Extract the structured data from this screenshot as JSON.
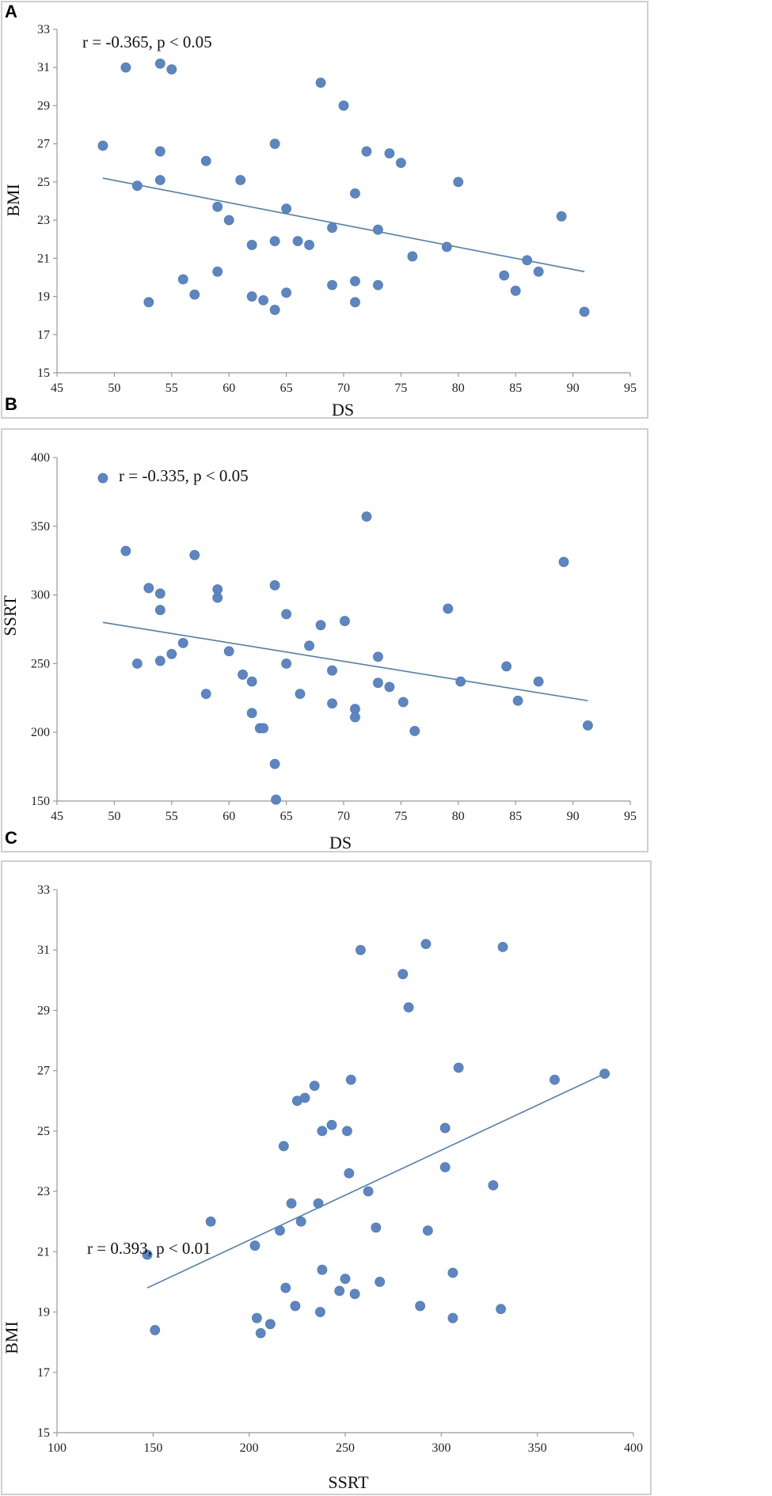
{
  "chart_data": [
    {
      "type": "scatter",
      "panel": "A",
      "title": "",
      "annotation": "r = -0.365,  p < 0.05",
      "xlabel": "DS",
      "ylabel": "BMI",
      "xlim": [
        45,
        95
      ],
      "ylim": [
        15,
        33
      ],
      "xticks": [
        45,
        50,
        55,
        60,
        65,
        70,
        75,
        80,
        85,
        90,
        95
      ],
      "yticks": [
        15,
        17,
        19,
        21,
        23,
        25,
        27,
        29,
        31,
        33
      ],
      "grid": false,
      "trendline": {
        "x": [
          49,
          91
        ],
        "y": [
          25.2,
          20.3
        ]
      },
      "points": [
        [
          49,
          26.9
        ],
        [
          51,
          31.0
        ],
        [
          52,
          24.8
        ],
        [
          53,
          18.7
        ],
        [
          54,
          31.2
        ],
        [
          54,
          26.6
        ],
        [
          54,
          25.1
        ],
        [
          55,
          30.9
        ],
        [
          56,
          19.9
        ],
        [
          57,
          19.1
        ],
        [
          58,
          26.1
        ],
        [
          59,
          23.7
        ],
        [
          59,
          20.3
        ],
        [
          60,
          23.0
        ],
        [
          61,
          25.1
        ],
        [
          62,
          21.7
        ],
        [
          62,
          19.0
        ],
        [
          63,
          18.8
        ],
        [
          64,
          27.0
        ],
        [
          64,
          21.9
        ],
        [
          64,
          18.3
        ],
        [
          65,
          23.6
        ],
        [
          65,
          19.2
        ],
        [
          66,
          21.9
        ],
        [
          67,
          21.7
        ],
        [
          68,
          30.2
        ],
        [
          69,
          22.6
        ],
        [
          69,
          19.6
        ],
        [
          70,
          29.0
        ],
        [
          71,
          24.4
        ],
        [
          71,
          19.8
        ],
        [
          71,
          18.7
        ],
        [
          72,
          26.6
        ],
        [
          73,
          22.5
        ],
        [
          73,
          19.6
        ],
        [
          74,
          26.5
        ],
        [
          75,
          26.0
        ],
        [
          76,
          21.1
        ],
        [
          79,
          21.6
        ],
        [
          80,
          25.0
        ],
        [
          84,
          20.1
        ],
        [
          85,
          19.3
        ],
        [
          86,
          20.9
        ],
        [
          87,
          20.3
        ],
        [
          89,
          23.2
        ],
        [
          91,
          18.2
        ]
      ]
    },
    {
      "type": "scatter",
      "panel": "B",
      "title": "",
      "annotation": "r = -0.335,  p < 0.05",
      "xlabel": "DS",
      "ylabel": "SSRT",
      "xlim": [
        45,
        95
      ],
      "ylim": [
        150,
        400
      ],
      "xticks": [
        45,
        50,
        55,
        60,
        65,
        70,
        75,
        80,
        85,
        90,
        95
      ],
      "yticks": [
        150,
        200,
        250,
        300,
        350,
        400
      ],
      "grid": false,
      "trendline": {
        "x": [
          49,
          91.3
        ],
        "y": [
          280,
          223
        ]
      },
      "points": [
        [
          49,
          385
        ],
        [
          51,
          332
        ],
        [
          52,
          250
        ],
        [
          53,
          305
        ],
        [
          54,
          301
        ],
        [
          54,
          289
        ],
        [
          54,
          252
        ],
        [
          55,
          257
        ],
        [
          56,
          265
        ],
        [
          57,
          329
        ],
        [
          58,
          228
        ],
        [
          59,
          304
        ],
        [
          59,
          298
        ],
        [
          60,
          259
        ],
        [
          61.2,
          242
        ],
        [
          62,
          237
        ],
        [
          62,
          214
        ],
        [
          62.7,
          203
        ],
        [
          63,
          203
        ],
        [
          64,
          307
        ],
        [
          64,
          177
        ],
        [
          64.1,
          151
        ],
        [
          65,
          286
        ],
        [
          65,
          250
        ],
        [
          66.2,
          228
        ],
        [
          67,
          263
        ],
        [
          68,
          278
        ],
        [
          69,
          245
        ],
        [
          69,
          221
        ],
        [
          70.1,
          281
        ],
        [
          71,
          217
        ],
        [
          71,
          211
        ],
        [
          72,
          357
        ],
        [
          73,
          255
        ],
        [
          73,
          236
        ],
        [
          74,
          233
        ],
        [
          75.2,
          222
        ],
        [
          76.2,
          201
        ],
        [
          79.1,
          290
        ],
        [
          80.2,
          237
        ],
        [
          84.2,
          248
        ],
        [
          85.2,
          223
        ],
        [
          87,
          237
        ],
        [
          89.2,
          324
        ],
        [
          91.3,
          205
        ]
      ]
    },
    {
      "type": "scatter",
      "panel": "C",
      "title": "",
      "annotation": "r = 0.393,  p < 0.01",
      "xlabel": "SSRT",
      "ylabel": "BMI",
      "xlim": [
        100,
        400
      ],
      "ylim": [
        15,
        33
      ],
      "xticks": [
        100,
        150,
        200,
        250,
        300,
        350,
        400
      ],
      "yticks": [
        15,
        17,
        19,
        21,
        23,
        25,
        27,
        29,
        31,
        33
      ],
      "grid": false,
      "trendline": {
        "x": [
          147,
          385
        ],
        "y": [
          19.8,
          26.9
        ]
      },
      "points": [
        [
          147,
          20.9
        ],
        [
          151,
          18.4
        ],
        [
          180,
          22.0
        ],
        [
          203,
          21.2
        ],
        [
          204,
          18.8
        ],
        [
          206,
          18.3
        ],
        [
          211,
          18.6
        ],
        [
          216,
          21.7
        ],
        [
          218,
          24.5
        ],
        [
          219,
          19.8
        ],
        [
          222,
          22.6
        ],
        [
          224,
          19.2
        ],
        [
          225,
          26.0
        ],
        [
          227,
          22.0
        ],
        [
          229,
          26.1
        ],
        [
          234,
          26.5
        ],
        [
          236,
          22.6
        ],
        [
          237,
          19.0
        ],
        [
          238,
          25.0
        ],
        [
          238,
          20.4
        ],
        [
          243,
          25.2
        ],
        [
          247,
          19.7
        ],
        [
          250,
          20.1
        ],
        [
          251,
          25.0
        ],
        [
          252,
          23.6
        ],
        [
          253,
          26.7
        ],
        [
          255,
          19.6
        ],
        [
          258,
          31.0
        ],
        [
          262,
          23.0
        ],
        [
          266,
          21.8
        ],
        [
          268,
          20.0
        ],
        [
          280,
          30.2
        ],
        [
          283,
          29.1
        ],
        [
          289,
          19.2
        ],
        [
          292,
          31.2
        ],
        [
          293,
          21.7
        ],
        [
          302,
          25.1
        ],
        [
          302,
          23.8
        ],
        [
          306,
          20.3
        ],
        [
          306,
          18.8
        ],
        [
          309,
          27.1
        ],
        [
          327,
          23.2
        ],
        [
          331,
          19.1
        ],
        [
          332,
          31.1
        ],
        [
          359,
          26.7
        ],
        [
          385,
          26.9
        ]
      ]
    }
  ]
}
